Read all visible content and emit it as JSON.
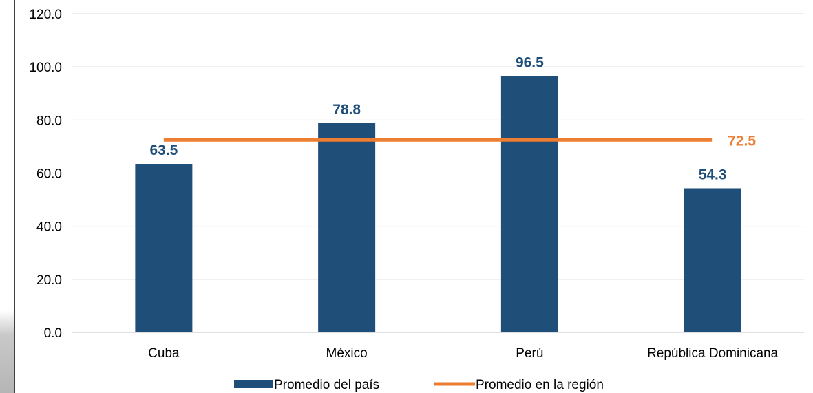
{
  "chart_data": {
    "type": "bar",
    "categories": [
      "Cuba",
      "México",
      "Perú",
      "República Dominicana"
    ],
    "series": [
      {
        "name": "Promedio del país",
        "kind": "bar",
        "color": "#1f4e79",
        "values": [
          63.5,
          78.8,
          96.5,
          54.3
        ]
      },
      {
        "name": "Promedio en la región",
        "kind": "line",
        "color": "#ed7d31",
        "values": [
          72.5,
          72.5,
          72.5,
          72.5
        ]
      }
    ],
    "ylim": [
      0,
      120
    ],
    "yticks": [
      "0.0",
      "20.0",
      "40.0",
      "60.0",
      "80.0",
      "100.0",
      "120.0"
    ],
    "bar_labels": [
      "63.5",
      "78.8",
      "96.5",
      "54.3"
    ],
    "line_label": "72.5",
    "grid": true,
    "legend_position": "bottom"
  }
}
